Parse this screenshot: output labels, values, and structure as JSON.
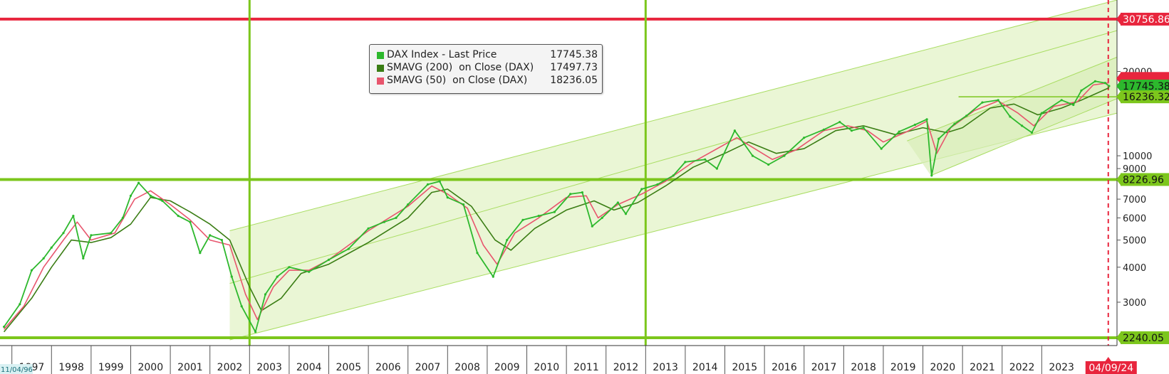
{
  "chart_data": {
    "type": "line",
    "y_scale": "log",
    "ylim": [
      2100,
      36000
    ],
    "xlim": [
      1996.7,
      2024.9
    ],
    "x_tick_labels": [
      "1997",
      "1998",
      "1999",
      "2000",
      "2001",
      "2002",
      "2003",
      "2004",
      "2005",
      "2006",
      "2007",
      "2008",
      "2009",
      "2010",
      "2011",
      "2012",
      "2013",
      "2014",
      "2015",
      "2016",
      "2017",
      "2018",
      "2019",
      "2020",
      "2021",
      "2022",
      "2023"
    ],
    "y_tick_labels": [
      "20000",
      "10000",
      "9000",
      "7000",
      "6000",
      "5000",
      "4000",
      "3000"
    ],
    "corner_date_label": "11/04/96",
    "current_date_label": "04/09/24",
    "series": [
      {
        "name": "DAX Index - Last Price",
        "last_value": "17745.38",
        "color": "#2db82d",
        "points": [
          [
            1996.8,
            2450
          ],
          [
            1997.2,
            2950
          ],
          [
            1997.5,
            3900
          ],
          [
            1997.8,
            4300
          ],
          [
            1998.0,
            4700
          ],
          [
            1998.3,
            5300
          ],
          [
            1998.55,
            6100
          ],
          [
            1998.8,
            4300
          ],
          [
            1999.0,
            5200
          ],
          [
            1999.5,
            5300
          ],
          [
            1999.8,
            6000
          ],
          [
            2000.0,
            7200
          ],
          [
            2000.2,
            8000
          ],
          [
            2000.5,
            7200
          ],
          [
            2000.8,
            6900
          ],
          [
            2001.2,
            6100
          ],
          [
            2001.5,
            5800
          ],
          [
            2001.75,
            4500
          ],
          [
            2002.0,
            5200
          ],
          [
            2002.3,
            5000
          ],
          [
            2002.55,
            3700
          ],
          [
            2002.8,
            2900
          ],
          [
            2003.15,
            2350
          ],
          [
            2003.4,
            3200
          ],
          [
            2003.7,
            3700
          ],
          [
            2004.0,
            4000
          ],
          [
            2004.5,
            3850
          ],
          [
            2005.0,
            4250
          ],
          [
            2005.5,
            4650
          ],
          [
            2006.0,
            5500
          ],
          [
            2006.4,
            5800
          ],
          [
            2006.7,
            6000
          ],
          [
            2007.0,
            6700
          ],
          [
            2007.5,
            7900
          ],
          [
            2007.8,
            8100
          ],
          [
            2008.0,
            7100
          ],
          [
            2008.4,
            6700
          ],
          [
            2008.75,
            4500
          ],
          [
            2009.15,
            3700
          ],
          [
            2009.5,
            5000
          ],
          [
            2009.9,
            5900
          ],
          [
            2010.3,
            6100
          ],
          [
            2010.7,
            6300
          ],
          [
            2011.1,
            7300
          ],
          [
            2011.4,
            7400
          ],
          [
            2011.65,
            5600
          ],
          [
            2011.9,
            6000
          ],
          [
            2012.3,
            6800
          ],
          [
            2012.5,
            6200
          ],
          [
            2012.9,
            7600
          ],
          [
            2013.3,
            7900
          ],
          [
            2013.7,
            8500
          ],
          [
            2014.0,
            9500
          ],
          [
            2014.5,
            9700
          ],
          [
            2014.8,
            9000
          ],
          [
            2015.25,
            12300
          ],
          [
            2015.7,
            10000
          ],
          [
            2016.1,
            9300
          ],
          [
            2016.5,
            10000
          ],
          [
            2017.0,
            11600
          ],
          [
            2017.5,
            12400
          ],
          [
            2017.9,
            13200
          ],
          [
            2018.2,
            12300
          ],
          [
            2018.5,
            12600
          ],
          [
            2018.95,
            10600
          ],
          [
            2019.4,
            12200
          ],
          [
            2019.8,
            12900
          ],
          [
            2020.1,
            13500
          ],
          [
            2020.22,
            8500
          ],
          [
            2020.4,
            11500
          ],
          [
            2020.8,
            13000
          ],
          [
            2021.1,
            13900
          ],
          [
            2021.5,
            15500
          ],
          [
            2021.9,
            15800
          ],
          [
            2022.2,
            13800
          ],
          [
            2022.5,
            12800
          ],
          [
            2022.75,
            12100
          ],
          [
            2023.0,
            14200
          ],
          [
            2023.5,
            15800
          ],
          [
            2023.8,
            15200
          ],
          [
            2024.0,
            17100
          ],
          [
            2024.35,
            18450
          ],
          [
            2024.6,
            18200
          ],
          [
            2024.7,
            17745
          ]
        ]
      },
      {
        "name": "SMAVG (200)  on Close (DAX)",
        "last_value": "17497.73",
        "color": "#3a7d14",
        "points": [
          [
            1996.8,
            2350
          ],
          [
            1997.5,
            3100
          ],
          [
            1998.0,
            4000
          ],
          [
            1998.5,
            5000
          ],
          [
            1999.0,
            4900
          ],
          [
            1999.5,
            5100
          ],
          [
            2000.0,
            5700
          ],
          [
            2000.5,
            7100
          ],
          [
            2001.0,
            6900
          ],
          [
            2001.5,
            6300
          ],
          [
            2002.0,
            5700
          ],
          [
            2002.5,
            5000
          ],
          [
            2003.0,
            3400
          ],
          [
            2003.3,
            2800
          ],
          [
            2003.8,
            3100
          ],
          [
            2004.3,
            3800
          ],
          [
            2005.0,
            4100
          ],
          [
            2006.0,
            4900
          ],
          [
            2007.0,
            6000
          ],
          [
            2007.6,
            7400
          ],
          [
            2008.0,
            7600
          ],
          [
            2008.6,
            6600
          ],
          [
            2009.2,
            5000
          ],
          [
            2009.6,
            4600
          ],
          [
            2010.2,
            5500
          ],
          [
            2011.0,
            6400
          ],
          [
            2011.7,
            6900
          ],
          [
            2012.2,
            6400
          ],
          [
            2012.8,
            6800
          ],
          [
            2013.5,
            7800
          ],
          [
            2014.2,
            9100
          ],
          [
            2015.0,
            10200
          ],
          [
            2015.6,
            11200
          ],
          [
            2016.3,
            10200
          ],
          [
            2017.0,
            10600
          ],
          [
            2017.8,
            12300
          ],
          [
            2018.5,
            12800
          ],
          [
            2019.3,
            11900
          ],
          [
            2020.0,
            12600
          ],
          [
            2020.6,
            12100
          ],
          [
            2021.0,
            12600
          ],
          [
            2021.7,
            14800
          ],
          [
            2022.3,
            15300
          ],
          [
            2022.9,
            14000
          ],
          [
            2023.5,
            14800
          ],
          [
            2024.0,
            15800
          ],
          [
            2024.7,
            17498
          ]
        ]
      },
      {
        "name": "SMAVG (50)  on Close (DAX)",
        "last_value": "18236.05",
        "color": "#e8556d",
        "points": [
          [
            1996.8,
            2400
          ],
          [
            1997.3,
            2900
          ],
          [
            1997.8,
            4000
          ],
          [
            1998.3,
            5000
          ],
          [
            1998.65,
            5800
          ],
          [
            1999.0,
            5000
          ],
          [
            1999.6,
            5300
          ],
          [
            2000.1,
            7000
          ],
          [
            2000.5,
            7500
          ],
          [
            2001.0,
            6700
          ],
          [
            2001.5,
            5900
          ],
          [
            2002.0,
            5000
          ],
          [
            2002.5,
            4800
          ],
          [
            2002.9,
            3200
          ],
          [
            2003.2,
            2600
          ],
          [
            2003.6,
            3400
          ],
          [
            2004.0,
            3900
          ],
          [
            2004.5,
            3900
          ],
          [
            2005.0,
            4250
          ],
          [
            2006.0,
            5400
          ],
          [
            2007.0,
            6600
          ],
          [
            2007.6,
            7800
          ],
          [
            2008.0,
            7300
          ],
          [
            2008.5,
            6500
          ],
          [
            2008.9,
            4800
          ],
          [
            2009.25,
            4100
          ],
          [
            2009.7,
            5300
          ],
          [
            2010.3,
            6000
          ],
          [
            2011.0,
            7100
          ],
          [
            2011.5,
            7200
          ],
          [
            2011.8,
            6000
          ],
          [
            2012.3,
            6700
          ],
          [
            2012.9,
            7300
          ],
          [
            2013.5,
            8100
          ],
          [
            2014.2,
            9500
          ],
          [
            2015.3,
            11600
          ],
          [
            2015.8,
            10500
          ],
          [
            2016.2,
            9700
          ],
          [
            2016.8,
            10500
          ],
          [
            2017.5,
            12300
          ],
          [
            2018.1,
            12800
          ],
          [
            2018.6,
            12300
          ],
          [
            2019.0,
            11200
          ],
          [
            2019.6,
            12200
          ],
          [
            2020.1,
            13300
          ],
          [
            2020.35,
            10200
          ],
          [
            2020.7,
            12600
          ],
          [
            2021.3,
            14500
          ],
          [
            2021.9,
            15700
          ],
          [
            2022.4,
            14200
          ],
          [
            2022.8,
            12800
          ],
          [
            2023.3,
            15000
          ],
          [
            2023.9,
            15600
          ],
          [
            2024.3,
            17900
          ],
          [
            2024.7,
            18236
          ]
        ]
      }
    ],
    "horizontal_levels": [
      {
        "value": 30756.86,
        "label": "30756.86",
        "color": "#e8253d"
      },
      {
        "value": 8226.96,
        "label": "8226.96",
        "color": "#7cc61c"
      },
      {
        "value": 2240.05,
        "label": "2240.05",
        "color": "#7cc61c"
      },
      {
        "value": 16236.32,
        "label": "16236.32",
        "color": "#7cc61c"
      }
    ],
    "vertical_markers": [
      {
        "x": 2003.0,
        "color": "#7cc61c"
      },
      {
        "x": 2013.0,
        "color": "#7cc61c"
      },
      {
        "x": 2024.68,
        "color": "#e8253d",
        "style": "dashed"
      }
    ],
    "trend_channel": {
      "upper": [
        [
          2002.5,
          5400
        ],
        [
          2024.9,
          36000
        ]
      ],
      "middle": [
        [
          2002.5,
          3500
        ],
        [
          2024.9,
          28000
        ]
      ],
      "lower": [
        [
          2002.5,
          2200
        ],
        [
          2024.9,
          14200
        ]
      ]
    },
    "inner_channel": {
      "upper": [
        [
          2019.6,
          11300
        ],
        [
          2024.9,
          22500
        ]
      ],
      "lower": [
        [
          2020.2,
          8500
        ],
        [
          2024.9,
          16000
        ]
      ]
    },
    "resistance_segment": {
      "x0": 2020.9,
      "x1": 2024.9,
      "value": 16236.32
    }
  }
}
